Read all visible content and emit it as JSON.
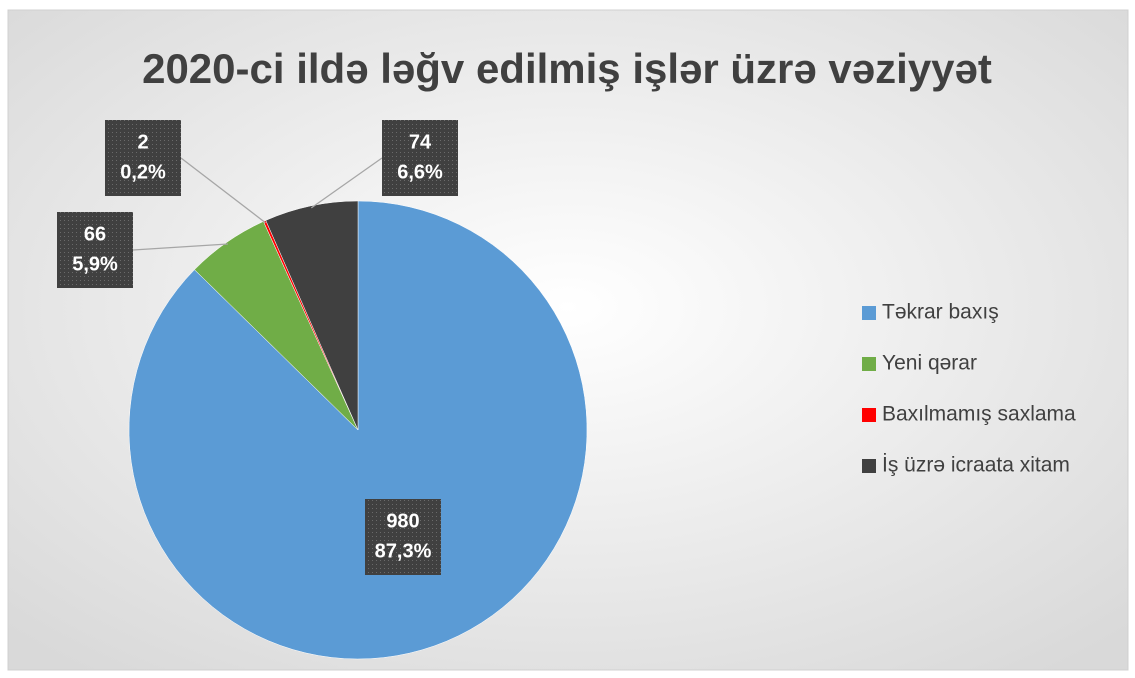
{
  "chart_data": {
    "type": "pie",
    "title": "2020-ci ildə ləğv edilmiş işlər üzrə vəziyyət",
    "categories": [
      "Təkrar baxış",
      "Yeni qərar",
      "Baxılmamış saxlama",
      "İş üzrə icraata xitam"
    ],
    "values": [
      980,
      66,
      2,
      74
    ],
    "percent_labels": [
      "87,3%",
      "5,9%",
      "0,2%",
      "6,6%"
    ],
    "colors": [
      "#5b9bd5",
      "#70ad47",
      "#ff0000",
      "#404040"
    ],
    "legend": "right"
  }
}
